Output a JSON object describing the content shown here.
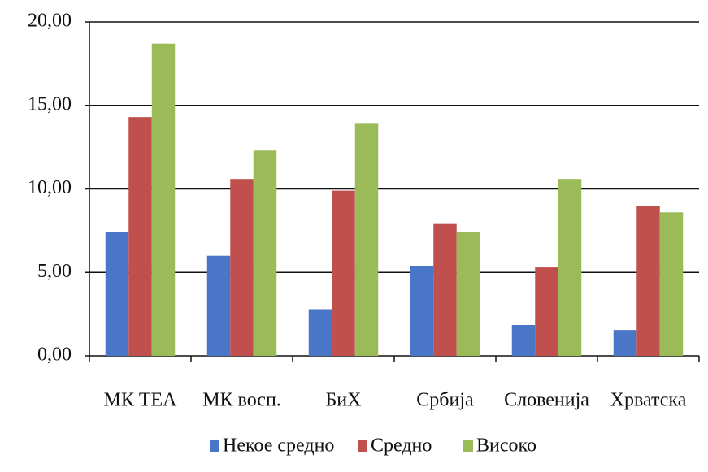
{
  "chart_data": {
    "type": "bar",
    "categories": [
      "МК ТЕА",
      "МК восп.",
      "БиХ",
      "Србија",
      "Словенија",
      "Хрватска"
    ],
    "series": [
      {
        "name": "Некое средно",
        "color": "#4a76c8",
        "values": [
          7.4,
          6.0,
          2.8,
          5.4,
          1.85,
          1.55
        ]
      },
      {
        "name": "Средно",
        "color": "#c0504d",
        "values": [
          14.3,
          10.6,
          9.9,
          7.9,
          5.3,
          9.0
        ]
      },
      {
        "name": "Високо",
        "color": "#9bbb59",
        "values": [
          18.7,
          12.3,
          13.9,
          7.4,
          10.6,
          8.6
        ]
      }
    ],
    "ylim": [
      0,
      20
    ],
    "yticks": [
      {
        "value": 0,
        "label": "0,00"
      },
      {
        "value": 5,
        "label": "5,00"
      },
      {
        "value": 10,
        "label": "10,00"
      },
      {
        "value": 15,
        "label": "15,00"
      },
      {
        "value": 20,
        "label": "20,00"
      }
    ],
    "grid": true,
    "legend": "bottom"
  }
}
